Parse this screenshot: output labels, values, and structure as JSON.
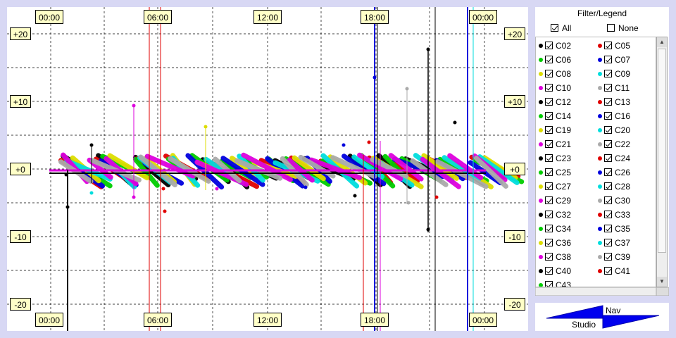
{
  "plot": {
    "time_labels_top": [
      "00:00",
      "06:00",
      "12:00",
      "18:00",
      "00:00"
    ],
    "time_labels_bottom": [
      "00:00",
      "06:00",
      "12:00",
      "18:00",
      "00:00"
    ],
    "y_labels": [
      "+20",
      "+10",
      "+0",
      "-10",
      "-20"
    ]
  },
  "legend": {
    "title": "Filter/Legend",
    "all_label": "All",
    "all_checked": true,
    "none_label": "None",
    "none_checked": false,
    "items": [
      {
        "name": "C02",
        "color": "#000000"
      },
      {
        "name": "C05",
        "color": "#e00000"
      },
      {
        "name": "C06",
        "color": "#00cc00"
      },
      {
        "name": "C07",
        "color": "#0000dd"
      },
      {
        "name": "C08",
        "color": "#dddd00"
      },
      {
        "name": "C09",
        "color": "#00dddd"
      },
      {
        "name": "C10",
        "color": "#dd00dd"
      },
      {
        "name": "C11",
        "color": "#aaaaaa"
      },
      {
        "name": "C12",
        "color": "#000000"
      },
      {
        "name": "C13",
        "color": "#e00000"
      },
      {
        "name": "C14",
        "color": "#00cc00"
      },
      {
        "name": "C16",
        "color": "#0000dd"
      },
      {
        "name": "C19",
        "color": "#dddd00"
      },
      {
        "name": "C20",
        "color": "#00dddd"
      },
      {
        "name": "C21",
        "color": "#dd00dd"
      },
      {
        "name": "C22",
        "color": "#aaaaaa"
      },
      {
        "name": "C23",
        "color": "#000000"
      },
      {
        "name": "C24",
        "color": "#e00000"
      },
      {
        "name": "C25",
        "color": "#00cc00"
      },
      {
        "name": "C26",
        "color": "#0000dd"
      },
      {
        "name": "C27",
        "color": "#dddd00"
      },
      {
        "name": "C28",
        "color": "#00dddd"
      },
      {
        "name": "C29",
        "color": "#dd00dd"
      },
      {
        "name": "C30",
        "color": "#aaaaaa"
      },
      {
        "name": "C32",
        "color": "#000000"
      },
      {
        "name": "C33",
        "color": "#e00000"
      },
      {
        "name": "C34",
        "color": "#00cc00"
      },
      {
        "name": "C35",
        "color": "#0000dd"
      },
      {
        "name": "C36",
        "color": "#dddd00"
      },
      {
        "name": "C37",
        "color": "#00dddd"
      },
      {
        "name": "C38",
        "color": "#dd00dd"
      },
      {
        "name": "C39",
        "color": "#aaaaaa"
      },
      {
        "name": "C40",
        "color": "#000000"
      },
      {
        "name": "C41",
        "color": "#e00000"
      },
      {
        "name": "C43",
        "color": "#00cc00"
      }
    ]
  },
  "nav": {
    "nav_label": "Nav",
    "studio_label": "Studio",
    "arrow_color": "#0000ee"
  }
}
